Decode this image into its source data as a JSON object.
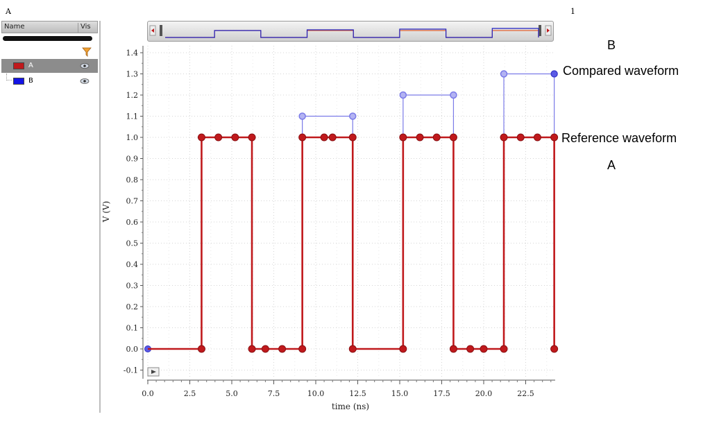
{
  "window": {
    "title_left": "A",
    "title_right": "1"
  },
  "sidebar": {
    "columns": {
      "name": "Name",
      "vis": "Vis"
    },
    "signals": [
      {
        "label": "A",
        "color": "#c0191c",
        "selected": true
      },
      {
        "label": "B",
        "color": "#1414e6",
        "selected": false
      }
    ]
  },
  "annotations": {
    "b_label": "B",
    "compared": "Compared waveform",
    "reference": "Reference waveform",
    "a_label": "A"
  },
  "chart_data": {
    "type": "line",
    "title": "",
    "xlabel": "time (ns)",
    "ylabel": "V (V)",
    "xlim": [
      0,
      24.2
    ],
    "ylim": [
      -0.13,
      1.43
    ],
    "x_ticks": [
      0,
      2.5,
      5,
      7.5,
      10,
      12.5,
      15,
      17.5,
      20,
      22.5
    ],
    "x_tick_labels": [
      "0.0",
      "2.5",
      "5.0",
      "7.5",
      "10.0",
      "12.5",
      "15.0",
      "17.5",
      "20.0",
      "22.5"
    ],
    "y_ticks": [
      -0.1,
      0,
      0.1,
      0.2,
      0.3,
      0.4,
      0.5,
      0.6,
      0.7,
      0.8,
      0.9,
      1.0,
      1.1,
      1.2,
      1.3,
      1.4
    ],
    "y_tick_labels": [
      "-0.1",
      "0.0",
      "0.1",
      "0.2",
      "0.3",
      "0.4",
      "0.5",
      "0.6",
      "0.7",
      "0.8",
      "0.9",
      "1.0",
      "1.1",
      "1.2",
      "1.3",
      "1.4"
    ],
    "grid": true,
    "series": [
      {
        "name": "A",
        "color": "#c0191c",
        "x": [
          0,
          3.2,
          3.2,
          4.2,
          5.2,
          6.2,
          6.2,
          7.0,
          8.0,
          9.2,
          9.2,
          10.5,
          11.0,
          12.2,
          12.2,
          15.2,
          15.2,
          16.2,
          17.2,
          18.2,
          18.2,
          19.2,
          20.0,
          21.2,
          21.2,
          22.2,
          23.2,
          24.2,
          24.2
        ],
        "y": [
          0,
          0,
          1,
          1,
          1,
          1,
          0,
          0,
          0,
          0,
          1,
          1,
          1,
          1,
          0,
          0,
          1,
          1,
          1,
          1,
          0,
          0,
          0,
          0,
          1,
          1,
          1,
          1,
          0
        ]
      },
      {
        "name": "B",
        "color": "#7a7ae8",
        "x": [
          0,
          3.2,
          3.2,
          6.2,
          6.2,
          9.2,
          9.2,
          12.2,
          12.2,
          15.2,
          15.2,
          18.2,
          18.2,
          21.2,
          21.2,
          24.2,
          24.2
        ],
        "y": [
          0,
          0,
          1,
          1,
          0,
          0,
          1.1,
          1.1,
          0,
          0,
          1.2,
          1.2,
          0,
          0,
          1.3,
          1.3,
          0
        ]
      }
    ]
  }
}
